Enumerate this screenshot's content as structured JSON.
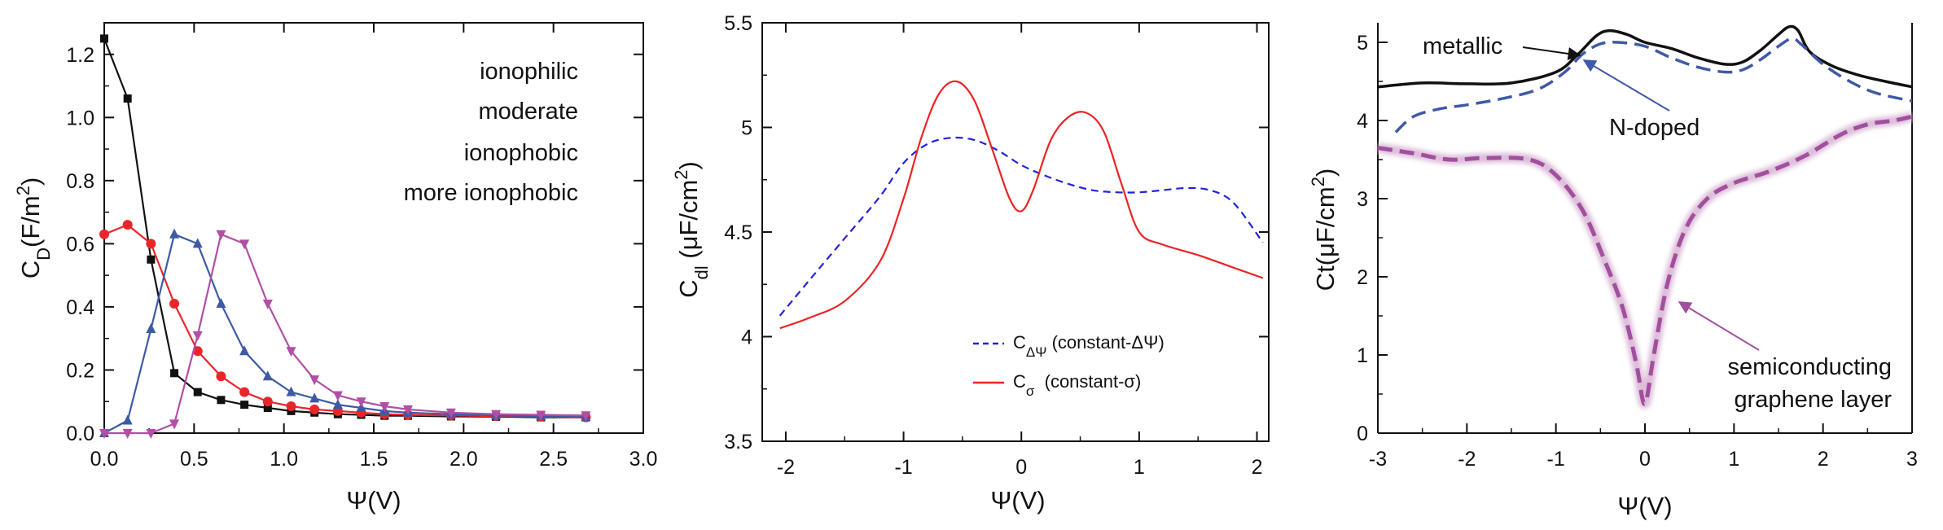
{
  "chart_data": [
    {
      "type": "line",
      "xlabel": "Ψ(V)",
      "ylabel": "C_D(F/m^2)",
      "ylabel_main": "C",
      "ylabel_sub": "D",
      "ylabel_mid": "(F/m",
      "ylabel_sup": "2",
      "ylabel_end": ")",
      "xlim": [
        0,
        3
      ],
      "ylim": [
        0,
        1.3
      ],
      "xticks": [
        "0.0",
        "0.5",
        "1.0",
        "1.5",
        "2.0",
        "2.5",
        "3.0"
      ],
      "yticks": [
        "0.0",
        "0.2",
        "0.4",
        "0.6",
        "0.8",
        "1.0",
        "1.2"
      ],
      "legend_position": "top-right",
      "series": [
        {
          "name": "ionophilic",
          "color": "#111111",
          "marker": "square",
          "x": [
            0.0,
            0.13,
            0.26,
            0.39,
            0.52,
            0.65,
            0.78,
            0.91,
            1.04,
            1.17,
            1.3,
            1.43,
            1.56,
            1.69,
            1.93,
            2.18,
            2.43,
            2.68
          ],
          "y": [
            1.25,
            1.06,
            0.55,
            0.19,
            0.13,
            0.105,
            0.09,
            0.08,
            0.07,
            0.065,
            0.06,
            0.058,
            0.055,
            0.055,
            0.053,
            0.052,
            0.05,
            0.05
          ]
        },
        {
          "name": "moderate",
          "color": "#e8262a",
          "marker": "circle",
          "x": [
            0.0,
            0.13,
            0.26,
            0.39,
            0.52,
            0.65,
            0.78,
            0.91,
            1.04,
            1.17,
            1.3,
            1.43,
            1.56,
            1.69,
            1.93,
            2.18,
            2.43,
            2.68
          ],
          "y": [
            0.63,
            0.66,
            0.6,
            0.41,
            0.26,
            0.18,
            0.13,
            0.1,
            0.085,
            0.075,
            0.07,
            0.065,
            0.06,
            0.058,
            0.056,
            0.054,
            0.052,
            0.05
          ]
        },
        {
          "name": "ionophobic",
          "color": "#3c5aa6",
          "marker": "triangle-up",
          "x": [
            0.0,
            0.13,
            0.26,
            0.39,
            0.52,
            0.65,
            0.78,
            0.91,
            1.04,
            1.17,
            1.3,
            1.43,
            1.56,
            1.69,
            1.93,
            2.18,
            2.43,
            2.68
          ],
          "y": [
            0.0,
            0.04,
            0.33,
            0.63,
            0.6,
            0.41,
            0.26,
            0.18,
            0.13,
            0.11,
            0.09,
            0.08,
            0.07,
            0.065,
            0.06,
            0.056,
            0.054,
            0.052
          ]
        },
        {
          "name": "more ionophobic",
          "color": "#b24ea5",
          "marker": "triangle-down",
          "x": [
            0.0,
            0.13,
            0.26,
            0.39,
            0.52,
            0.65,
            0.78,
            0.91,
            1.04,
            1.17,
            1.3,
            1.43,
            1.56,
            1.69,
            1.93,
            2.18,
            2.43,
            2.68
          ],
          "y": [
            0.0,
            0.0,
            0.0,
            0.03,
            0.31,
            0.63,
            0.6,
            0.41,
            0.26,
            0.17,
            0.12,
            0.1,
            0.085,
            0.075,
            0.065,
            0.06,
            0.058,
            0.056
          ]
        }
      ]
    },
    {
      "type": "line",
      "xlabel": "Ψ(V)",
      "ylabel": "C_dl (μF/cm^2)",
      "ylabel_main": "C",
      "ylabel_sub": "dl",
      "ylabel_mid": " (μF/cm",
      "ylabel_sup": "2",
      "ylabel_end": ")",
      "xlim": [
        -2.2,
        2.1
      ],
      "ylim": [
        3.5,
        5.5
      ],
      "xticks": [
        "-2",
        "-1",
        "0",
        "1",
        "2"
      ],
      "yticks": [
        "3.5",
        "4",
        "4.5",
        "5",
        "5.5"
      ],
      "legend_position": "bottom-right",
      "series": [
        {
          "name": "C_ΔΨ (constant-ΔΨ)",
          "label_main": "C",
          "label_sub": "ΔΨ",
          "label_rest": " (constant-ΔΨ)",
          "color": "#2222dd",
          "style": "dashed",
          "x": [
            -2.05,
            -1.8,
            -1.5,
            -1.2,
            -1.0,
            -0.8,
            -0.6,
            -0.4,
            -0.2,
            0.0,
            0.2,
            0.4,
            0.6,
            0.8,
            1.0,
            1.2,
            1.4,
            1.6,
            1.8,
            2.05
          ],
          "y": [
            4.1,
            4.27,
            4.47,
            4.67,
            4.83,
            4.92,
            4.95,
            4.94,
            4.89,
            4.82,
            4.77,
            4.73,
            4.7,
            4.69,
            4.69,
            4.7,
            4.71,
            4.7,
            4.64,
            4.45
          ]
        },
        {
          "name": "C_σ (constant-σ)",
          "label_main": "C",
          "label_sub": "σ",
          "label_rest": "  (constant-σ)",
          "color": "#ee2222",
          "style": "solid",
          "x": [
            -2.05,
            -1.8,
            -1.5,
            -1.2,
            -1.0,
            -0.85,
            -0.7,
            -0.55,
            -0.4,
            -0.25,
            -0.1,
            0.0,
            0.1,
            0.25,
            0.4,
            0.55,
            0.7,
            0.85,
            1.0,
            1.2,
            1.5,
            1.8,
            2.05
          ],
          "y": [
            4.04,
            4.09,
            4.17,
            4.36,
            4.66,
            4.95,
            5.16,
            5.22,
            5.13,
            4.9,
            4.66,
            4.6,
            4.7,
            4.94,
            5.05,
            5.07,
            4.98,
            4.73,
            4.5,
            4.44,
            4.39,
            4.33,
            4.28
          ]
        }
      ]
    },
    {
      "type": "line",
      "xlabel": "Ψ(V)",
      "ylabel": "Ct(μF/cm^2)",
      "ylabel_main": "Ct(μF/cm",
      "ylabel_sup": "2",
      "ylabel_end": ")",
      "xlim": [
        -3,
        3
      ],
      "ylim": [
        0,
        5.25
      ],
      "xticks": [
        "-3",
        "-2",
        "-1",
        "0",
        "1",
        "2",
        "3"
      ],
      "yticks": [
        "0",
        "1",
        "2",
        "3",
        "4",
        "5"
      ],
      "series": [
        {
          "name": "metallic",
          "color": "#111111",
          "style": "solid",
          "x": [
            -3.0,
            -2.5,
            -2.0,
            -1.5,
            -1.0,
            -0.75,
            -0.55,
            -0.4,
            -0.2,
            0.0,
            0.3,
            0.6,
            0.9,
            1.1,
            1.3,
            1.5,
            1.62,
            1.72,
            1.85,
            2.1,
            2.4,
            2.7,
            3.0
          ],
          "y": [
            4.43,
            4.48,
            4.47,
            4.48,
            4.62,
            4.85,
            5.08,
            5.15,
            5.1,
            5.0,
            4.92,
            4.8,
            4.72,
            4.75,
            4.9,
            5.1,
            5.2,
            5.15,
            4.88,
            4.7,
            4.58,
            4.5,
            4.43
          ]
        },
        {
          "name": "N-doped",
          "color": "#3f59a6",
          "style": "dashed",
          "x": [
            -2.8,
            -2.6,
            -2.3,
            -2.0,
            -1.6,
            -1.2,
            -0.9,
            -0.7,
            -0.5,
            -0.3,
            0.0,
            0.3,
            0.6,
            0.9,
            1.1,
            1.3,
            1.5,
            1.65,
            1.75,
            2.0,
            2.3,
            2.6,
            3.0
          ],
          "y": [
            3.85,
            4.05,
            4.15,
            4.2,
            4.28,
            4.4,
            4.62,
            4.85,
            4.98,
            5.0,
            4.95,
            4.8,
            4.68,
            4.62,
            4.65,
            4.78,
            4.95,
            5.05,
            4.98,
            4.72,
            4.5,
            4.35,
            4.25
          ]
        },
        {
          "name": "semiconducting graphene layer",
          "color": "#a14f9e",
          "style": "dashed",
          "x": [
            -3.0,
            -2.6,
            -2.2,
            -1.8,
            -1.3,
            -1.0,
            -0.7,
            -0.45,
            -0.25,
            -0.1,
            -0.03,
            0.0,
            0.03,
            0.1,
            0.25,
            0.45,
            0.7,
            1.0,
            1.4,
            1.8,
            2.2,
            2.5,
            2.8,
            3.0
          ],
          "y": [
            3.65,
            3.58,
            3.5,
            3.52,
            3.5,
            3.3,
            2.85,
            2.2,
            1.6,
            0.9,
            0.45,
            0.38,
            0.5,
            1.0,
            1.9,
            2.6,
            3.0,
            3.2,
            3.35,
            3.55,
            3.82,
            3.95,
            4.0,
            4.05
          ]
        }
      ],
      "annotations": [
        {
          "text": "metallic",
          "color": "#111111"
        },
        {
          "text": "N-doped",
          "color": "#3f59a6"
        },
        {
          "text": "semiconducting",
          "color": "#a14f9e"
        },
        {
          "text": "graphene layer",
          "color": "#a14f9e"
        }
      ]
    }
  ]
}
